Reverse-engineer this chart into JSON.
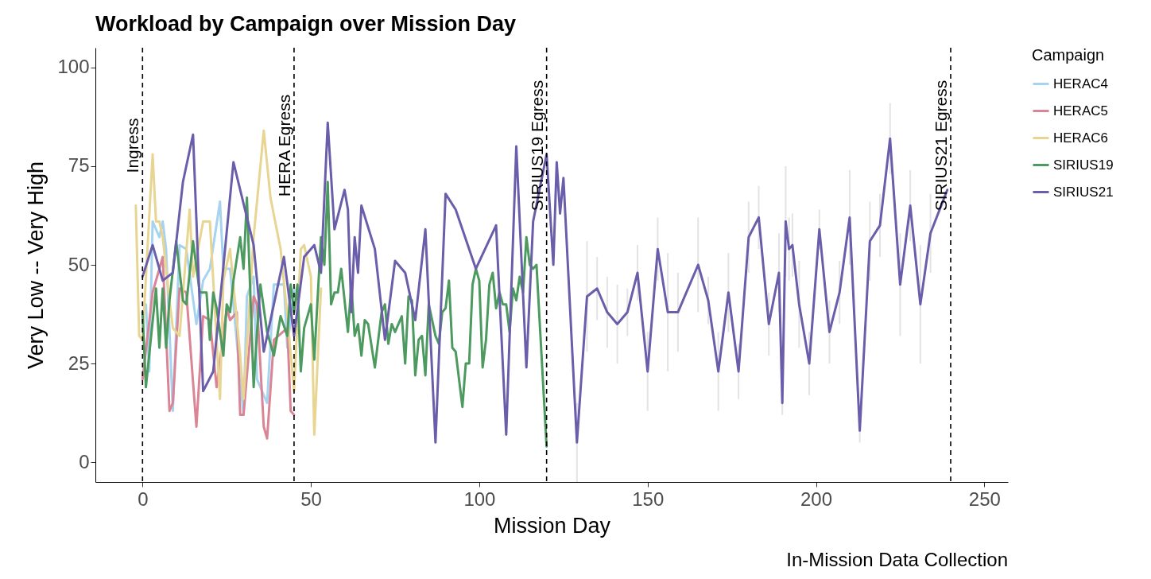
{
  "chart_data": {
    "type": "line",
    "title": "Workload by Campaign over Mission Day",
    "xlabel": "Mission Day",
    "ylabel": "Very Low -- Very High",
    "legend_title": "Campaign",
    "legend": "right",
    "annotations": [
      "In-Mission Data Collection"
    ],
    "xlim": [
      -14,
      257
    ],
    "ylim": [
      -5,
      105
    ],
    "xticks": [
      0,
      50,
      100,
      150,
      200,
      250
    ],
    "yticks": [
      0,
      25,
      50,
      75,
      100
    ],
    "ref_lines": [
      {
        "axis": "x",
        "value": 0,
        "label": "Ingress",
        "line_style": "dashed",
        "color": "#000000"
      },
      {
        "axis": "x",
        "value": 45,
        "label": "HERA Egress",
        "line_style": "dashed",
        "color": "#000000"
      },
      {
        "axis": "x",
        "value": 120,
        "label": "SIRIUS19 Egress",
        "line_style": "dashed",
        "color": "#000000"
      },
      {
        "axis": "x",
        "value": 240,
        "label": "SIRIUS21 Egress",
        "line_style": "dashed",
        "color": "#000000"
      }
    ],
    "series": [
      {
        "name": "HERAC4",
        "color": "#a6d3f0",
        "x": [
          1,
          2,
          3,
          5,
          6,
          7,
          9,
          11,
          13,
          16,
          18,
          20,
          23,
          24,
          26,
          30,
          31,
          33,
          34,
          37,
          39,
          42,
          43,
          45
        ],
        "values": [
          40,
          23,
          61,
          57,
          61,
          54,
          13,
          55,
          54,
          35,
          46,
          49,
          66,
          49,
          49,
          12,
          42,
          47,
          21,
          15,
          45,
          45,
          29,
          44
        ]
      },
      {
        "name": "HERAC5",
        "color": "#da8596",
        "x": [
          0,
          3,
          6,
          8,
          9,
          11,
          13,
          16,
          18,
          20,
          22,
          25,
          26,
          28,
          29,
          30,
          33,
          34,
          36,
          37,
          39,
          43,
          44,
          45
        ],
        "values": [
          21,
          43,
          52,
          13,
          15,
          44,
          43,
          9,
          37,
          36,
          19,
          39,
          36,
          38,
          12,
          12,
          42,
          40,
          9,
          6,
          31,
          34,
          13,
          12
        ]
      },
      {
        "name": "HERAC6",
        "color": "#e8d592",
        "x": [
          -2,
          -1,
          0,
          3,
          4,
          5,
          6,
          8,
          9,
          11,
          14,
          15,
          18,
          20,
          23,
          24,
          26,
          29,
          30,
          33,
          36,
          38,
          41,
          43,
          45,
          47,
          48,
          50,
          51,
          53
        ],
        "values": [
          65,
          32,
          31,
          78,
          61,
          61,
          57,
          41,
          34,
          32,
          64,
          47,
          61,
          61,
          16,
          46,
          54,
          27,
          16,
          57,
          84,
          67,
          54,
          37,
          18,
          54,
          55,
          47,
          7,
          44
        ]
      },
      {
        "name": "SIRIUS19",
        "color": "#4c9a5f",
        "x": [
          0,
          1,
          4,
          5,
          6,
          7,
          8,
          10,
          12,
          13,
          15,
          17,
          19,
          20,
          21,
          22,
          24,
          25,
          26,
          27,
          29,
          30,
          31,
          33,
          34,
          35,
          37,
          39,
          41,
          43,
          44,
          45,
          46,
          47,
          48,
          50,
          51,
          53,
          54,
          55,
          56,
          57,
          58,
          59,
          61,
          62,
          63,
          64,
          65,
          66,
          67,
          69,
          71,
          72,
          73,
          74,
          75,
          77,
          78,
          79,
          80,
          81,
          82,
          83,
          84,
          85,
          87,
          88,
          89,
          90,
          91,
          92,
          93,
          95,
          96,
          97,
          98,
          99,
          100,
          101,
          102,
          103,
          104,
          105,
          106,
          107,
          108,
          109,
          110,
          111,
          112,
          113,
          114,
          115,
          116,
          117,
          120
        ],
        "values": [
          38,
          19,
          44,
          29,
          44,
          29,
          41,
          56,
          41,
          40,
          56,
          43,
          43,
          31,
          43,
          39,
          27,
          40,
          38,
          46,
          57,
          49,
          67,
          19,
          33,
          45,
          33,
          27,
          37,
          32,
          45,
          38,
          45,
          23,
          34,
          40,
          26,
          57,
          50,
          71,
          40,
          43,
          43,
          49,
          33,
          45,
          32,
          35,
          27,
          36,
          35,
          24,
          38,
          40,
          30,
          35,
          33,
          37,
          25,
          42,
          41,
          22,
          31,
          32,
          22,
          40,
          32,
          30,
          38,
          39,
          46,
          29,
          28,
          14,
          25,
          25,
          45,
          49,
          46,
          24,
          31,
          45,
          48,
          39,
          43,
          40,
          40,
          33,
          44,
          41,
          47,
          43,
          57,
          50,
          49,
          50,
          4
        ]
      },
      {
        "name": "SIRIUS21",
        "color": "#6a5eab",
        "x": [
          0,
          3,
          6,
          9,
          12,
          15,
          18,
          21,
          27,
          33,
          36,
          42,
          45,
          48,
          51,
          53,
          55,
          57,
          60,
          61,
          62,
          63,
          64,
          65,
          69,
          72,
          75,
          78,
          81,
          84,
          87,
          90,
          93,
          99,
          105,
          108,
          111,
          114,
          116,
          120,
          122,
          123,
          124,
          125,
          129,
          132,
          135,
          138,
          141,
          144,
          147,
          150,
          153,
          156,
          159,
          165,
          168,
          171,
          174,
          177,
          180,
          183,
          186,
          189,
          190,
          191,
          192,
          193,
          195,
          198,
          201,
          204,
          207,
          210,
          213,
          216,
          219,
          222,
          225,
          228,
          231,
          234,
          239
        ],
        "values": [
          47,
          55,
          46,
          48,
          71,
          83,
          18,
          23,
          76,
          55,
          28,
          52,
          32,
          52,
          55,
          48,
          86,
          59,
          69,
          64,
          38,
          57,
          48,
          65,
          54,
          31,
          51,
          48,
          36,
          59,
          5,
          68,
          64,
          49,
          60,
          7,
          80,
          24,
          61,
          78,
          50,
          76,
          63,
          72,
          5,
          42,
          44,
          38,
          35,
          38,
          48,
          23,
          54,
          38,
          38,
          50,
          41,
          23,
          43,
          23,
          57,
          62,
          35,
          48,
          15,
          61,
          54,
          55,
          40,
          25,
          59,
          33,
          43,
          62,
          8,
          56,
          60,
          82,
          45,
          65,
          40,
          58,
          69
        ],
        "errors": [
          null,
          null,
          null,
          null,
          null,
          null,
          null,
          null,
          null,
          null,
          null,
          null,
          null,
          null,
          null,
          null,
          null,
          null,
          null,
          null,
          null,
          null,
          null,
          null,
          null,
          null,
          null,
          null,
          null,
          null,
          null,
          null,
          null,
          null,
          null,
          null,
          null,
          null,
          null,
          null,
          null,
          null,
          null,
          null,
          10,
          14,
          8,
          9,
          10,
          6,
          7,
          10,
          8,
          15,
          10,
          12,
          6,
          10,
          10,
          7,
          9,
          8,
          8,
          10,
          3,
          14,
          8,
          8,
          11,
          8,
          5,
          8,
          8,
          12,
          3,
          10,
          8,
          9,
          13,
          9,
          15,
          10,
          null
        ]
      }
    ]
  }
}
